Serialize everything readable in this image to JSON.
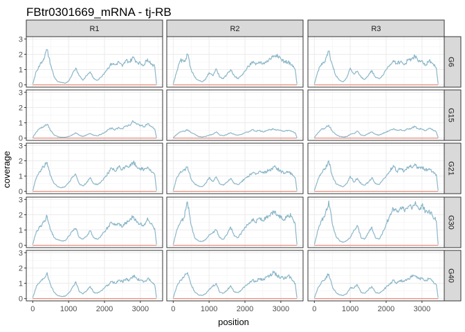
{
  "chart_data": {
    "type": "line",
    "title": "FBtr0301669_mRNA - tj-RB",
    "xlabel": "position",
    "ylabel": "coverage",
    "facet_columns": [
      "R1",
      "R2",
      "R3"
    ],
    "facet_rows": [
      "G6",
      "G15",
      "G21",
      "G30",
      "G40"
    ],
    "x_ticks": [
      0,
      1000,
      2000,
      3000
    ],
    "y_ticks": [
      0,
      1,
      2,
      3
    ],
    "xlim": [
      -180,
      3620
    ],
    "ylim": [
      -0.15,
      3.15
    ],
    "grid": true,
    "series_colors": {
      "coverage": "#8ab6c8",
      "baseline": "#e8826f"
    },
    "baseline_value": 0,
    "x": [
      0,
      100,
      200,
      300,
      400,
      500,
      600,
      700,
      800,
      900,
      1000,
      1100,
      1200,
      1300,
      1400,
      1500,
      1600,
      1700,
      1800,
      1900,
      2000,
      2100,
      2200,
      2300,
      2400,
      2500,
      2600,
      2700,
      2800,
      2900,
      3000,
      3100,
      3200,
      3300,
      3400,
      3450
    ],
    "panels": [
      {
        "row": "G6",
        "col": "R1",
        "values": [
          0.05,
          0.9,
          1.3,
          1.7,
          2.3,
          1.3,
          0.5,
          0.2,
          0.15,
          0.1,
          0.25,
          0.7,
          1.1,
          0.6,
          0.3,
          0.6,
          0.85,
          0.4,
          0.3,
          0.5,
          0.8,
          1.1,
          1.4,
          1.3,
          1.5,
          1.2,
          1.6,
          1.5,
          1.8,
          1.5,
          1.4,
          1.3,
          1.7,
          1.4,
          1.2,
          0.05
        ]
      },
      {
        "row": "G6",
        "col": "R2",
        "values": [
          0.05,
          0.9,
          1.6,
          1.5,
          2.0,
          1.0,
          0.5,
          0.3,
          0.2,
          0.35,
          0.8,
          0.6,
          1.05,
          0.5,
          0.4,
          0.7,
          1.0,
          0.6,
          0.4,
          0.6,
          0.9,
          1.2,
          1.5,
          1.3,
          1.5,
          1.4,
          1.5,
          1.7,
          1.9,
          2.0,
          1.7,
          1.5,
          1.5,
          1.3,
          1.0,
          0.05
        ]
      },
      {
        "row": "G6",
        "col": "R3",
        "values": [
          0.05,
          0.9,
          1.4,
          1.5,
          2.2,
          1.3,
          0.6,
          0.3,
          0.2,
          0.45,
          1.1,
          0.7,
          0.9,
          0.5,
          0.35,
          0.6,
          0.95,
          0.5,
          0.4,
          0.6,
          1.0,
          1.3,
          1.6,
          1.4,
          1.5,
          1.3,
          1.6,
          1.7,
          1.9,
          1.5,
          1.6,
          1.3,
          1.6,
          1.4,
          1.1,
          0.05
        ]
      },
      {
        "row": "G15",
        "col": "R1",
        "values": [
          0.05,
          0.4,
          0.65,
          0.75,
          0.9,
          0.5,
          0.2,
          0.08,
          0.05,
          0.05,
          0.1,
          0.2,
          0.35,
          0.2,
          0.1,
          0.2,
          0.3,
          0.2,
          0.15,
          0.25,
          0.35,
          0.55,
          0.65,
          0.55,
          0.7,
          0.6,
          0.8,
          0.85,
          1.1,
          0.9,
          0.85,
          0.75,
          0.95,
          0.75,
          0.6,
          0.03
        ]
      },
      {
        "row": "G15",
        "col": "R2",
        "values": [
          0.03,
          0.25,
          0.4,
          0.45,
          0.55,
          0.35,
          0.25,
          0.1,
          0.08,
          0.1,
          0.2,
          0.25,
          0.4,
          0.2,
          0.15,
          0.25,
          0.35,
          0.25,
          0.2,
          0.25,
          0.35,
          0.4,
          0.55,
          0.45,
          0.5,
          0.4,
          0.5,
          0.55,
          0.6,
          0.55,
          0.5,
          0.45,
          0.5,
          0.45,
          0.35,
          0.03
        ]
      },
      {
        "row": "G15",
        "col": "R3",
        "values": [
          0.03,
          0.35,
          0.6,
          0.65,
          0.85,
          0.45,
          0.25,
          0.1,
          0.08,
          0.1,
          0.25,
          0.3,
          0.45,
          0.2,
          0.15,
          0.3,
          0.4,
          0.25,
          0.2,
          0.3,
          0.4,
          0.5,
          0.6,
          0.5,
          0.55,
          0.5,
          0.6,
          0.65,
          0.75,
          0.6,
          0.6,
          0.5,
          0.65,
          0.55,
          0.4,
          0.03
        ]
      },
      {
        "row": "G21",
        "col": "R1",
        "values": [
          0.05,
          0.9,
          1.3,
          1.6,
          1.9,
          1.0,
          0.5,
          0.3,
          0.25,
          0.3,
          0.55,
          0.9,
          1.1,
          0.5,
          0.35,
          0.55,
          0.9,
          0.5,
          0.45,
          0.6,
          0.9,
          1.2,
          1.5,
          1.3,
          1.6,
          1.4,
          1.7,
          1.6,
          1.9,
          1.6,
          1.5,
          1.4,
          1.6,
          1.3,
          1.1,
          0.05
        ]
      },
      {
        "row": "G21",
        "col": "R2",
        "values": [
          0.05,
          0.9,
          1.3,
          1.4,
          1.6,
          0.8,
          0.5,
          0.35,
          0.3,
          0.5,
          0.9,
          0.65,
          0.95,
          0.5,
          0.4,
          0.6,
          0.85,
          0.5,
          0.45,
          0.6,
          0.85,
          1.0,
          1.2,
          1.1,
          1.3,
          1.2,
          1.3,
          1.4,
          1.6,
          1.5,
          1.3,
          1.2,
          1.3,
          1.1,
          0.9,
          0.05
        ]
      },
      {
        "row": "G21",
        "col": "R3",
        "values": [
          0.05,
          0.8,
          1.2,
          1.5,
          2.0,
          1.0,
          0.5,
          0.4,
          0.3,
          0.5,
          1.0,
          0.6,
          0.85,
          0.5,
          0.4,
          0.6,
          0.9,
          0.5,
          0.45,
          0.7,
          1.0,
          1.3,
          1.7,
          1.3,
          1.5,
          1.3,
          1.6,
          1.6,
          1.8,
          1.5,
          1.6,
          1.4,
          1.5,
          1.3,
          1.1,
          0.05
        ]
      },
      {
        "row": "G30",
        "col": "R1",
        "values": [
          0.05,
          0.9,
          1.2,
          1.5,
          1.9,
          1.0,
          0.5,
          0.35,
          0.3,
          0.3,
          0.6,
          0.9,
          1.1,
          0.5,
          0.4,
          0.6,
          0.95,
          0.5,
          0.4,
          0.6,
          0.9,
          1.2,
          1.5,
          1.3,
          1.4,
          1.2,
          1.5,
          1.6,
          1.9,
          1.5,
          1.4,
          1.3,
          1.8,
          1.4,
          1.1,
          0.05
        ]
      },
      {
        "row": "G30",
        "col": "R2",
        "values": [
          0.05,
          1.0,
          1.5,
          1.8,
          2.8,
          1.3,
          0.5,
          0.3,
          0.25,
          0.35,
          0.7,
          0.8,
          1.0,
          0.5,
          0.4,
          0.7,
          1.2,
          0.6,
          0.5,
          0.8,
          1.2,
          1.4,
          1.7,
          1.5,
          1.8,
          1.6,
          1.8,
          1.9,
          2.2,
          2.0,
          1.8,
          1.7,
          2.0,
          1.9,
          1.4,
          0.05
        ]
      },
      {
        "row": "G30",
        "col": "R3",
        "values": [
          0.05,
          1.0,
          1.6,
          2.0,
          2.9,
          1.4,
          0.6,
          0.3,
          0.2,
          0.3,
          0.5,
          1.0,
          1.3,
          0.5,
          0.4,
          0.8,
          1.2,
          0.5,
          0.4,
          0.8,
          1.4,
          1.9,
          2.4,
          2.2,
          2.5,
          2.3,
          2.4,
          2.5,
          2.7,
          2.4,
          2.6,
          2.2,
          2.3,
          1.9,
          1.6,
          0.05
        ]
      },
      {
        "row": "G40",
        "col": "R1",
        "values": [
          0.05,
          0.8,
          1.1,
          1.3,
          1.7,
          0.9,
          0.4,
          0.2,
          0.15,
          0.15,
          0.35,
          0.7,
          1.1,
          0.45,
          0.3,
          0.5,
          0.8,
          0.4,
          0.35,
          0.5,
          0.7,
          0.9,
          1.1,
          1.0,
          1.2,
          1.1,
          1.3,
          1.2,
          1.5,
          1.3,
          1.2,
          1.1,
          1.3,
          1.1,
          0.9,
          0.05
        ]
      },
      {
        "row": "G40",
        "col": "R2",
        "values": [
          0.05,
          0.8,
          1.2,
          1.4,
          1.7,
          0.9,
          0.45,
          0.25,
          0.2,
          0.3,
          0.6,
          0.8,
          1.0,
          0.4,
          0.35,
          0.55,
          0.85,
          0.45,
          0.4,
          0.55,
          0.8,
          1.0,
          1.2,
          1.1,
          1.3,
          1.2,
          1.4,
          1.5,
          1.7,
          1.5,
          1.4,
          1.3,
          1.5,
          1.3,
          1.0,
          0.05
        ]
      },
      {
        "row": "G40",
        "col": "R3",
        "values": [
          0.05,
          0.7,
          1.1,
          1.3,
          1.6,
          0.8,
          0.4,
          0.25,
          0.2,
          0.3,
          0.7,
          0.7,
          0.9,
          0.4,
          0.35,
          0.55,
          0.8,
          0.4,
          0.35,
          0.5,
          0.75,
          0.95,
          1.2,
          1.0,
          1.2,
          1.1,
          1.3,
          1.4,
          1.5,
          1.3,
          1.3,
          1.2,
          1.3,
          1.1,
          0.9,
          0.05
        ]
      }
    ]
  }
}
